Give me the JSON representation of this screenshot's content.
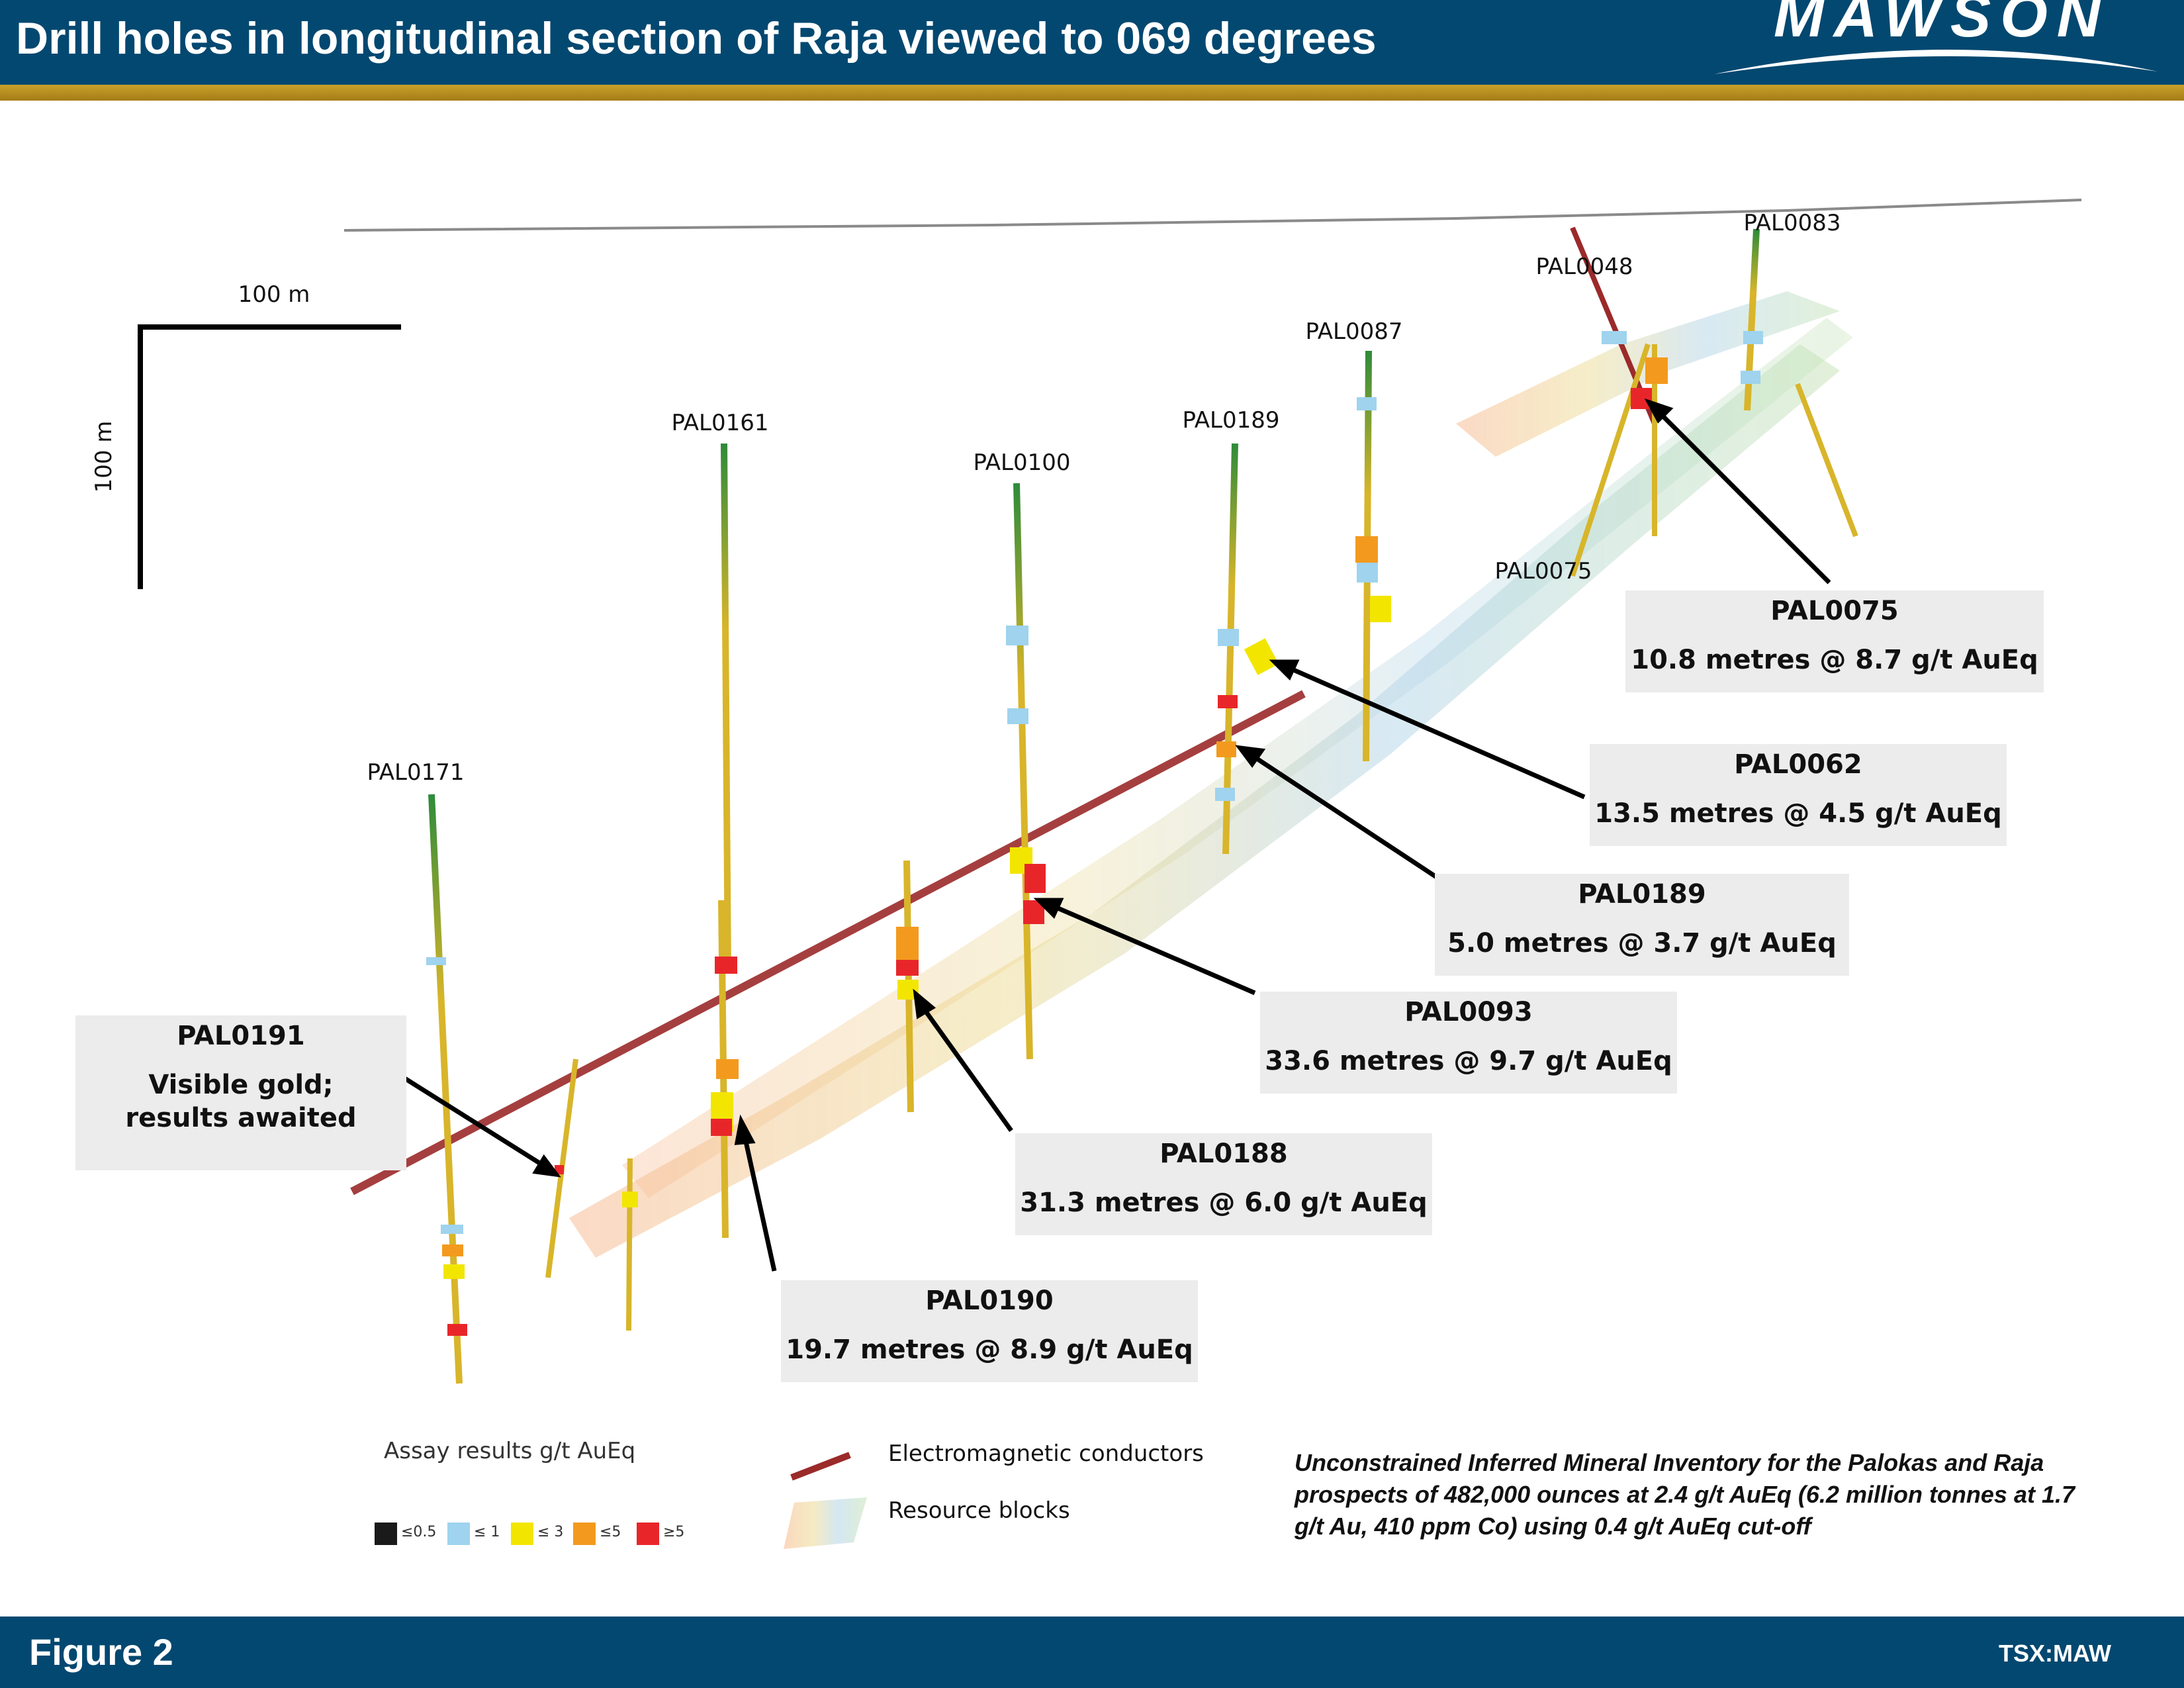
{
  "header": {
    "title": "Drill holes in longitudinal section of Raja viewed to 069 degrees",
    "logo_text": "MAWSON"
  },
  "footer": {
    "figure_label": "Figure 2",
    "ticker": "TSX:MAW"
  },
  "scale": {
    "horizontal_label": "100 m",
    "vertical_label": "100 m"
  },
  "drill_holes": [
    {
      "id": "PAL0171"
    },
    {
      "id": "PAL0161"
    },
    {
      "id": "PAL0100"
    },
    {
      "id": "PAL0189"
    },
    {
      "id": "PAL0087"
    },
    {
      "id": "PAL0048"
    },
    {
      "id": "PAL0083"
    },
    {
      "id": "PAL0075"
    }
  ],
  "callouts": [
    {
      "title": "PAL0075",
      "body": "10.8 metres @ 8.7 g/t AuEq"
    },
    {
      "title": "PAL0062",
      "body": "13.5 metres @ 4.5 g/t AuEq"
    },
    {
      "title": "PAL0189",
      "body": "5.0 metres @ 3.7 g/t AuEq"
    },
    {
      "title": "PAL0093",
      "body": "33.6 metres @ 9.7 g/t AuEq"
    },
    {
      "title": "PAL0188",
      "body": "31.3 metres @ 6.0 g/t AuEq"
    },
    {
      "title": "PAL0190",
      "body": "19.7 metres @ 8.9 g/t AuEq"
    },
    {
      "title": "PAL0191",
      "body": "Visible gold; results awaited"
    }
  ],
  "legend": {
    "assay_title": "Assay results g/t AuEq",
    "assay_classes": [
      {
        "label": "≤0.5",
        "color": "#1a1a1a"
      },
      {
        "label": "≤ 1",
        "color": "#9fd3ee"
      },
      {
        "label": "≤ 3",
        "color": "#f2e600"
      },
      {
        "label": "≤5",
        "color": "#f39a1e"
      },
      {
        "label": "≥5",
        "color": "#e8262a"
      }
    ],
    "em_conductors_label": "Electromagnetic conductors",
    "resource_blocks_label": "Resource blocks",
    "colors": {
      "em_conductor": "#9b2a2a",
      "drill_trace": "#d8b52a",
      "drill_trace_green": "#2e8b3a"
    }
  },
  "inventory_note": "Unconstrained Inferred Mineral Inventory for the Palokas and Raja prospects of 482,000 ounces at 2.4 g/t AuEq (6.2 million tonnes at 1.7 g/t Au, 410 ppm Co) using 0.4 g/t AuEq cut-off"
}
